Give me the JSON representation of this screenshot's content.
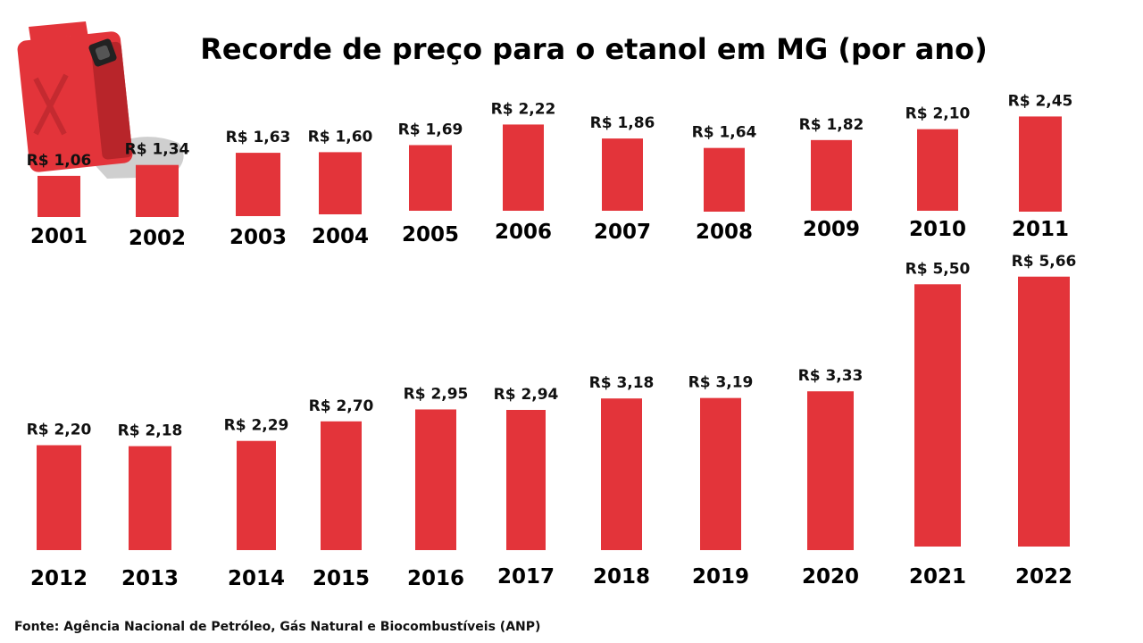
{
  "chart_data": {
    "type": "bar",
    "title": "Recorde de preço para o etanol em MG (por ano)",
    "source": "Fonte: Agência Nacional de Petróleo, Gás Natural e Biocombustíveis (ANP)",
    "bar_color": "#e3343a",
    "icon": "fuel-canister-icon",
    "categories": [
      "2001",
      "2002",
      "2003",
      "2004",
      "2005",
      "2006",
      "2007",
      "2008",
      "2009",
      "2010",
      "2011",
      "2012",
      "2013",
      "2014",
      "2015",
      "2016",
      "2017",
      "2018",
      "2019",
      "2020",
      "2021",
      "2022"
    ],
    "values": [
      1.06,
      1.34,
      1.63,
      1.6,
      1.69,
      2.22,
      1.86,
      1.64,
      1.82,
      2.1,
      2.45,
      2.2,
      2.18,
      2.29,
      2.7,
      2.95,
      2.94,
      3.18,
      3.19,
      3.33,
      5.5,
      5.66
    ],
    "value_labels": [
      "R$ 1,06",
      "R$ 1,34",
      "R$ 1,63",
      "R$ 1,60",
      "R$ 1,69",
      "R$ 2,22",
      "R$ 1,86",
      "R$ 1,64",
      "R$ 1,82",
      "R$ 2,10",
      "R$ 2,45",
      "R$ 2,20",
      "R$ 2,18",
      "R$ 2,29",
      "R$ 2,70",
      "R$ 2,95",
      "R$ 2,94",
      "R$ 3,18",
      "R$ 3,19",
      "R$ 3,33",
      "R$ 5,50",
      "R$ 5,66"
    ],
    "ylabel": "",
    "xlabel": ""
  }
}
